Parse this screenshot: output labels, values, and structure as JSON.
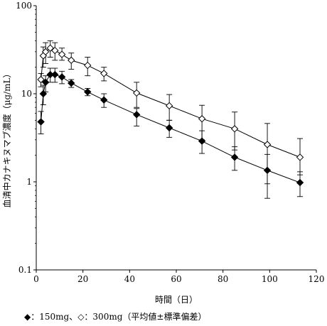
{
  "chart_data": {
    "type": "line",
    "xlabel": "時間（日）",
    "ylabel": "血清中カナキヌマブ濃度（μg/mL）",
    "x_scale": "linear",
    "y_scale": "log",
    "xlim": [
      0,
      120
    ],
    "ylim": [
      0.1,
      100
    ],
    "x_ticks": [
      0,
      20,
      40,
      60,
      80,
      100,
      120
    ],
    "x_tick_labels": [
      "0",
      "20",
      "40",
      "60",
      "80",
      "100",
      "120"
    ],
    "y_ticks": [
      0.1,
      1,
      10,
      100
    ],
    "y_tick_labels": [
      "0.1",
      "1",
      "10",
      "100"
    ],
    "grid": false,
    "legend": "bottom-left",
    "series": [
      {
        "marker": "filled-diamond",
        "color": "#000000",
        "x": [
          2,
          3,
          4,
          6,
          8,
          11,
          15,
          22,
          29,
          43,
          57,
          71,
          85,
          99,
          113
        ],
        "y": [
          4.8,
          10,
          13.5,
          16.5,
          16.5,
          15.5,
          13.2,
          10.5,
          8.5,
          5.8,
          4.1,
          2.9,
          1.9,
          1.35,
          0.98
        ],
        "err_low": [
          3.5,
          7.5,
          10.5,
          13.5,
          13.5,
          13.0,
          11.8,
          9.5,
          7.0,
          4.3,
          3.2,
          2.1,
          1.35,
          0.65,
          0.68
        ],
        "err_high": [
          6.3,
          12.5,
          16.0,
          19.5,
          19.5,
          18.0,
          14.5,
          11.5,
          10.0,
          6.8,
          5.0,
          3.8,
          2.5,
          2.05,
          1.3
        ]
      },
      {
        "marker": "open-diamond",
        "color": "#000000",
        "x": [
          2,
          3,
          4,
          6,
          8,
          11,
          15,
          22,
          29,
          43,
          57,
          71,
          85,
          99,
          113
        ],
        "y": [
          14.5,
          27,
          30,
          33,
          31,
          28,
          24,
          21,
          17,
          10.2,
          7.3,
          5.2,
          4.0,
          2.65,
          1.9
        ],
        "err_low": [
          12.0,
          20.0,
          22.0,
          26.0,
          24.0,
          24.0,
          19.0,
          16.0,
          14.0,
          7.0,
          5.0,
          3.0,
          2.3,
          0.95,
          1.2
        ],
        "err_high": [
          17.0,
          34.0,
          38.0,
          40.0,
          38.0,
          33.0,
          29.0,
          26.0,
          20.0,
          13.5,
          9.8,
          7.4,
          6.2,
          4.6,
          3.1
        ]
      }
    ]
  },
  "legend_caption": "◆：150mg、◇：300mg（平均値±標準偏差）"
}
